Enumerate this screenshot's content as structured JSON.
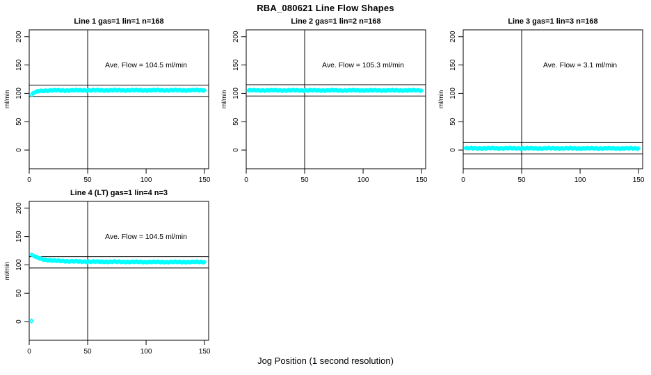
{
  "page": {
    "title": "RBA_080621  Line Flow Shapes",
    "xlabel": "Jog Position (1 second resolution)",
    "background": "#ffffff",
    "axis_color": "#000000"
  },
  "chart_data": [
    {
      "type": "scatter",
      "title": "Line 1 gas=1 lin=1 n=168",
      "annotation": "Ave. Flow =  104.5  ml/min",
      "ave_flow_ml_min": 104.5,
      "n": 168,
      "ylabel": "ml/min",
      "xlim": [
        0,
        153.5
      ],
      "ylim": [
        -33,
        212
      ],
      "xticks": [
        0,
        50,
        100,
        150
      ],
      "yticks": [
        0,
        50,
        100,
        150,
        200
      ],
      "vline_x": 50,
      "hlines": [
        94.5,
        114.5
      ],
      "ann_xy": [
        100,
        150
      ],
      "point_color": "#00FFFF",
      "series": [
        {
          "name": "flow",
          "keypoints": [
            [
              2,
              97
            ],
            [
              3,
              99.5
            ],
            [
              5,
              102
            ],
            [
              8,
              103.8
            ],
            [
              12,
              104.8
            ],
            [
              20,
              105.2
            ],
            [
              50,
              105.4
            ],
            [
              150,
              105.5
            ]
          ],
          "n_points": 149,
          "jitter": 0.9
        }
      ],
      "outliers": []
    },
    {
      "type": "scatter",
      "title": "Line 2 gas=1 lin=2 n=168",
      "annotation": "Ave. Flow =  105.3  ml/min",
      "ave_flow_ml_min": 105.3,
      "n": 168,
      "ylabel": "ml/min",
      "xlim": [
        0,
        153.5
      ],
      "ylim": [
        -33,
        212
      ],
      "xticks": [
        0,
        50,
        100,
        150
      ],
      "yticks": [
        0,
        50,
        100,
        150,
        200
      ],
      "vline_x": 50,
      "hlines": [
        95.3,
        115.3
      ],
      "ann_xy": [
        100,
        150
      ],
      "point_color": "#00FFFF",
      "series": [
        {
          "name": "flow",
          "keypoints": [
            [
              2,
              105.3
            ],
            [
              150,
              105.2
            ]
          ],
          "n_points": 149,
          "jitter": 0.8
        }
      ],
      "outliers": []
    },
    {
      "type": "scatter",
      "title": "Line 3 gas=1 lin=3 n=168",
      "annotation": "Ave. Flow =  3.1  ml/min",
      "ave_flow_ml_min": 3.1,
      "n": 168,
      "ylabel": "ml/min",
      "xlim": [
        0,
        153.5
      ],
      "ylim": [
        -33,
        212
      ],
      "xticks": [
        0,
        50,
        100,
        150
      ],
      "yticks": [
        0,
        50,
        100,
        150,
        200
      ],
      "vline_x": 50,
      "hlines": [
        -6.9,
        13.1
      ],
      "ann_xy": [
        100,
        150
      ],
      "point_color": "#00FFFF",
      "series": [
        {
          "name": "flow",
          "keypoints": [
            [
              2,
              3.2
            ],
            [
              150,
              3.0
            ]
          ],
          "n_points": 149,
          "jitter": 0.9
        }
      ],
      "outliers": []
    },
    {
      "type": "scatter",
      "title": "Line 4 (LT) gas=1 lin=4 n=3",
      "annotation": "Ave. Flow =  104.5  ml/min",
      "ave_flow_ml_min": 104.5,
      "n": 3,
      "ylabel": "ml/min",
      "xlim": [
        0,
        153.5
      ],
      "ylim": [
        -33,
        212
      ],
      "xticks": [
        0,
        50,
        100,
        150
      ],
      "yticks": [
        0,
        50,
        100,
        150,
        200
      ],
      "vline_x": 50,
      "hlines": [
        94.5,
        114.5
      ],
      "ann_xy": [
        100,
        150
      ],
      "point_color": "#00FFFF",
      "series": [
        {
          "name": "flow",
          "keypoints": [
            [
              2,
              118
            ],
            [
              4,
              115.5
            ],
            [
              7,
              112.5
            ],
            [
              12,
              109.5
            ],
            [
              20,
              107.5
            ],
            [
              35,
              106.3
            ],
            [
              50,
              105.7
            ],
            [
              100,
              105.2
            ],
            [
              150,
              105.1
            ]
          ],
          "n_points": 149,
          "jitter": 0.8
        }
      ],
      "outliers": [
        [
          2,
          1
        ]
      ]
    }
  ]
}
